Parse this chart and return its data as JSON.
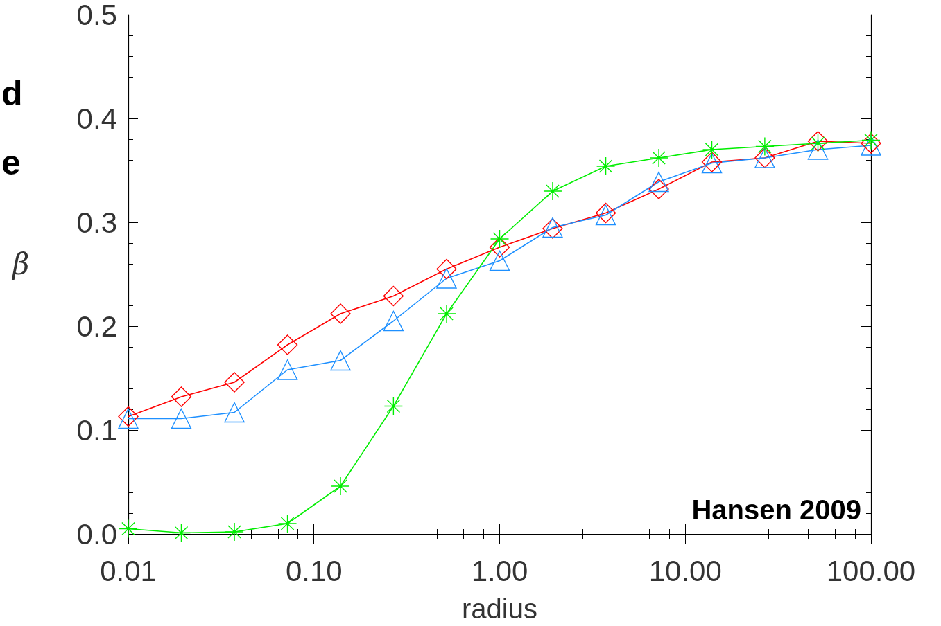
{
  "chart_data": {
    "type": "line",
    "xlabel": "radius",
    "ylabel": "β",
    "annotations": [
      "Hansen 2009",
      "d",
      "e"
    ],
    "log": "x",
    "grid": false,
    "xlim": [
      0.01,
      100
    ],
    "xticks": [
      0.01,
      {
        "value": 0.1,
        "label": "0.10"
      },
      {
        "value": 1,
        "label": "1.00"
      },
      {
        "value": 10,
        "label": "10.00"
      },
      {
        "value": 100,
        "label": "100.00"
      }
    ],
    "ylim": [
      0,
      0.5
    ],
    "yticks": [
      {
        "value": 0,
        "label": "0.0"
      },
      0.1,
      0.2,
      0.3,
      0.4,
      0.5
    ],
    "x": [
      0.01,
      0.0193,
      0.0373,
      0.072,
      0.139,
      0.268,
      0.518,
      1.0,
      1.93,
      3.73,
      7.2,
      13.9,
      26.8,
      51.8,
      100
    ],
    "series": [
      {
        "color": "#ff0000",
        "marker": "diamond",
        "values": [
          0.113,
          0.132,
          0.146,
          0.182,
          0.212,
          0.229,
          0.255,
          0.276,
          0.294,
          0.309,
          0.332,
          0.358,
          0.362,
          0.378,
          0.376
        ]
      },
      {
        "color": "#1e90ff",
        "marker": "triangle",
        "values": [
          0.111,
          0.111,
          0.117,
          0.158,
          0.167,
          0.205,
          0.246,
          0.263,
          0.295,
          0.307,
          0.339,
          0.357,
          0.362,
          0.37,
          0.374
        ]
      },
      {
        "color": "#00ee00",
        "marker": "cross",
        "values": [
          0.005,
          0.001,
          0.002,
          0.01,
          0.046,
          0.123,
          0.212,
          0.284,
          0.33,
          0.354,
          0.362,
          0.37,
          0.373,
          0.376,
          0.379
        ]
      }
    ]
  }
}
